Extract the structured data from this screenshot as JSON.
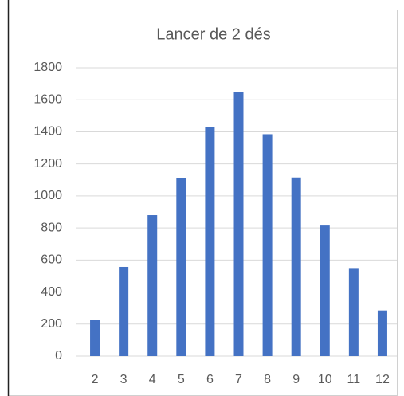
{
  "chart_data": {
    "type": "bar",
    "title": "Lancer de 2 dés",
    "categories": [
      "2",
      "3",
      "4",
      "5",
      "6",
      "7",
      "8",
      "9",
      "10",
      "11",
      "12"
    ],
    "values": [
      225,
      557,
      880,
      1110,
      1430,
      1650,
      1385,
      1115,
      815,
      550,
      285
    ],
    "color": "#4472c4",
    "ylim": [
      0,
      1800
    ],
    "yticks": [
      0,
      200,
      400,
      600,
      800,
      1000,
      1200,
      1400,
      1600,
      1800
    ],
    "grid": true
  }
}
